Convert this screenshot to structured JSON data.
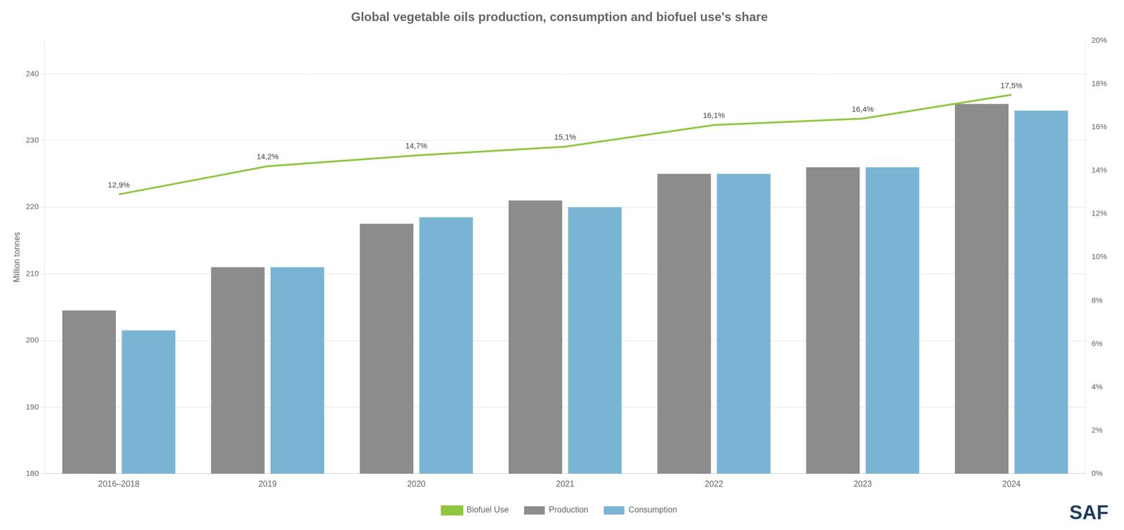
{
  "chart_data": {
    "type": "bar",
    "title": "Global vegetable oils production, consumption and biofuel use's share",
    "categories": [
      "2016–2018",
      "2019",
      "2020",
      "2021",
      "2022",
      "2023",
      "2024"
    ],
    "series": [
      {
        "name": "Production",
        "type": "bar",
        "color": "#8c8c8c",
        "values": [
          204.5,
          211.0,
          217.5,
          221.0,
          225.0,
          226.0,
          235.5
        ]
      },
      {
        "name": "Consumption",
        "type": "bar",
        "color": "#7ab4d4",
        "values": [
          201.5,
          211.0,
          218.5,
          220.0,
          225.0,
          226.0,
          234.5
        ]
      },
      {
        "name": "Biofuel Use",
        "type": "line",
        "color": "#8dc63f",
        "axis": "y2",
        "values": [
          12.9,
          14.2,
          14.7,
          15.1,
          16.1,
          16.4,
          17.5
        ],
        "data_labels": true,
        "value_labels": [
          "12,9%",
          "14,2%",
          "14,7%",
          "15,1%",
          "16,1%",
          "16,4%",
          "17,5%"
        ]
      }
    ],
    "y_label": "Million tonnes",
    "ylim": [
      180,
      245
    ],
    "yticks": [
      180,
      190,
      200,
      210,
      220,
      230,
      240
    ],
    "y2lim": [
      0,
      20
    ],
    "y2ticks": [
      {
        "value": 0,
        "label": "0%"
      },
      {
        "value": 2,
        "label": "2%"
      },
      {
        "value": 4,
        "label": "4%"
      },
      {
        "value": 6,
        "label": "6%"
      },
      {
        "value": 8,
        "label": "8%"
      },
      {
        "value": 10,
        "label": "10%"
      },
      {
        "value": 12,
        "label": "12%"
      },
      {
        "value": 14,
        "label": "14%"
      },
      {
        "value": 16,
        "label": "16%"
      },
      {
        "value": 18,
        "label": "18%"
      },
      {
        "value": 20,
        "label": "20%"
      }
    ],
    "grid": true,
    "legend": "bottom",
    "annotations": [
      {
        "text": "SAF",
        "color": "#1b3d5e"
      }
    ]
  }
}
